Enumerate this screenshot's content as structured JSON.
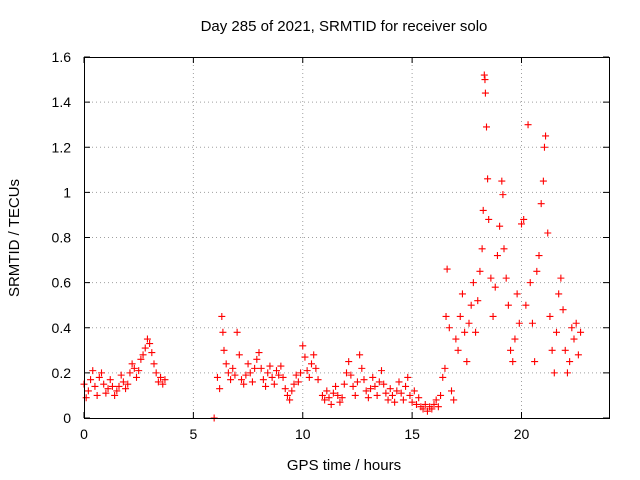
{
  "chart_data": {
    "type": "scatter",
    "title": "Day 285 of 2021, SRMTID for receiver solo",
    "xlabel": "GPS time / hours",
    "ylabel": "SRMTID / TECUs",
    "xlim": [
      0,
      24
    ],
    "ylim": [
      0,
      1.6
    ],
    "xticks": [
      "0",
      "5",
      "10",
      "15",
      "20"
    ],
    "xtick_values": [
      0,
      5,
      10,
      15,
      20
    ],
    "yticks": [
      "0",
      "0.2",
      "0.4",
      "0.6",
      "0.8",
      "1",
      "1.2",
      "1.4",
      "1.6"
    ],
    "ytick_values": [
      0,
      0.2,
      0.4,
      0.6,
      0.8,
      1.0,
      1.2,
      1.4,
      1.6
    ],
    "grid": true,
    "marker": "+",
    "color": "#ff0000",
    "series": [
      {
        "name": "SRMTID",
        "points": [
          [
            0.0,
            0.15
          ],
          [
            0.1,
            0.09
          ],
          [
            0.2,
            0.12
          ],
          [
            0.3,
            0.17
          ],
          [
            0.4,
            0.21
          ],
          [
            0.5,
            0.14
          ],
          [
            0.6,
            0.1
          ],
          [
            0.7,
            0.18
          ],
          [
            0.8,
            0.2
          ],
          [
            0.9,
            0.15
          ],
          [
            1.0,
            0.11
          ],
          [
            1.1,
            0.13
          ],
          [
            1.2,
            0.17
          ],
          [
            1.3,
            0.14
          ],
          [
            1.4,
            0.1
          ],
          [
            1.5,
            0.12
          ],
          [
            1.6,
            0.14
          ],
          [
            1.7,
            0.19
          ],
          [
            1.8,
            0.16
          ],
          [
            1.9,
            0.13
          ],
          [
            2.0,
            0.15
          ],
          [
            2.1,
            0.2
          ],
          [
            2.2,
            0.24
          ],
          [
            2.3,
            0.22
          ],
          [
            2.4,
            0.18
          ],
          [
            2.5,
            0.21
          ],
          [
            2.6,
            0.26
          ],
          [
            2.7,
            0.28
          ],
          [
            2.8,
            0.31
          ],
          [
            2.9,
            0.35
          ],
          [
            3.0,
            0.33
          ],
          [
            3.1,
            0.29
          ],
          [
            3.2,
            0.24
          ],
          [
            3.3,
            0.2
          ],
          [
            3.4,
            0.16
          ],
          [
            3.5,
            0.18
          ],
          [
            3.6,
            0.15
          ],
          [
            3.7,
            0.17
          ],
          [
            5.95,
            0.0
          ],
          [
            6.1,
            0.18
          ],
          [
            6.2,
            0.13
          ],
          [
            6.3,
            0.45
          ],
          [
            6.35,
            0.38
          ],
          [
            6.4,
            0.3
          ],
          [
            6.5,
            0.24
          ],
          [
            6.6,
            0.2
          ],
          [
            6.7,
            0.17
          ],
          [
            6.8,
            0.22
          ],
          [
            6.9,
            0.19
          ],
          [
            7.0,
            0.38
          ],
          [
            7.1,
            0.28
          ],
          [
            7.2,
            0.17
          ],
          [
            7.3,
            0.15
          ],
          [
            7.4,
            0.19
          ],
          [
            7.5,
            0.24
          ],
          [
            7.6,
            0.2
          ],
          [
            7.7,
            0.16
          ],
          [
            7.8,
            0.22
          ],
          [
            7.9,
            0.26
          ],
          [
            8.0,
            0.29
          ],
          [
            8.1,
            0.22
          ],
          [
            8.2,
            0.17
          ],
          [
            8.3,
            0.14
          ],
          [
            8.4,
            0.2
          ],
          [
            8.5,
            0.23
          ],
          [
            8.6,
            0.18
          ],
          [
            8.7,
            0.15
          ],
          [
            8.8,
            0.21
          ],
          [
            8.9,
            0.19
          ],
          [
            9.0,
            0.23
          ],
          [
            9.1,
            0.18
          ],
          [
            9.2,
            0.13
          ],
          [
            9.3,
            0.1
          ],
          [
            9.4,
            0.08
          ],
          [
            9.5,
            0.12
          ],
          [
            9.6,
            0.15
          ],
          [
            9.7,
            0.19
          ],
          [
            9.8,
            0.16
          ],
          [
            9.9,
            0.2
          ],
          [
            10.0,
            0.32
          ],
          [
            10.1,
            0.27
          ],
          [
            10.2,
            0.21
          ],
          [
            10.3,
            0.18
          ],
          [
            10.4,
            0.24
          ],
          [
            10.5,
            0.28
          ],
          [
            10.6,
            0.22
          ],
          [
            10.7,
            0.17
          ],
          [
            10.9,
            0.1
          ],
          [
            11.0,
            0.08
          ],
          [
            11.1,
            0.12
          ],
          [
            11.2,
            0.09
          ],
          [
            11.3,
            0.06
          ],
          [
            11.4,
            0.11
          ],
          [
            11.5,
            0.14
          ],
          [
            11.6,
            0.1
          ],
          [
            11.7,
            0.07
          ],
          [
            11.8,
            0.09
          ],
          [
            11.9,
            0.15
          ],
          [
            12.0,
            0.2
          ],
          [
            12.1,
            0.25
          ],
          [
            12.2,
            0.19
          ],
          [
            12.3,
            0.14
          ],
          [
            12.4,
            0.1
          ],
          [
            12.5,
            0.16
          ],
          [
            12.6,
            0.28
          ],
          [
            12.7,
            0.22
          ],
          [
            12.8,
            0.17
          ],
          [
            12.9,
            0.12
          ],
          [
            13.0,
            0.09
          ],
          [
            13.1,
            0.13
          ],
          [
            13.2,
            0.18
          ],
          [
            13.3,
            0.14
          ],
          [
            13.4,
            0.1
          ],
          [
            13.5,
            0.16
          ],
          [
            13.6,
            0.21
          ],
          [
            13.7,
            0.15
          ],
          [
            13.8,
            0.11
          ],
          [
            13.9,
            0.08
          ],
          [
            14.0,
            0.13
          ],
          [
            14.1,
            0.1
          ],
          [
            14.2,
            0.07
          ],
          [
            14.3,
            0.12
          ],
          [
            14.4,
            0.16
          ],
          [
            14.5,
            0.11
          ],
          [
            14.6,
            0.08
          ],
          [
            14.7,
            0.14
          ],
          [
            14.8,
            0.18
          ],
          [
            14.9,
            0.1
          ],
          [
            15.0,
            0.07
          ],
          [
            15.1,
            0.12
          ],
          [
            15.2,
            0.06
          ],
          [
            15.3,
            0.09
          ],
          [
            15.4,
            0.05
          ],
          [
            15.5,
            0.04
          ],
          [
            15.6,
            0.06
          ],
          [
            15.7,
            0.03
          ],
          [
            15.8,
            0.05
          ],
          [
            15.9,
            0.04
          ],
          [
            16.0,
            0.06
          ],
          [
            16.1,
            0.08
          ],
          [
            16.2,
            0.05
          ],
          [
            16.3,
            0.1
          ],
          [
            16.4,
            0.18
          ],
          [
            16.5,
            0.22
          ],
          [
            16.55,
            0.45
          ],
          [
            16.6,
            0.66
          ],
          [
            16.7,
            0.4
          ],
          [
            16.8,
            0.12
          ],
          [
            16.9,
            0.08
          ],
          [
            17.0,
            0.35
          ],
          [
            17.1,
            0.3
          ],
          [
            17.2,
            0.45
          ],
          [
            17.3,
            0.55
          ],
          [
            17.4,
            0.38
          ],
          [
            17.5,
            0.25
          ],
          [
            17.6,
            0.42
          ],
          [
            17.7,
            0.5
          ],
          [
            17.8,
            0.6
          ],
          [
            17.9,
            0.38
          ],
          [
            18.0,
            0.52
          ],
          [
            18.1,
            0.65
          ],
          [
            18.2,
            0.75
          ],
          [
            18.25,
            0.92
          ],
          [
            18.3,
            1.52
          ],
          [
            18.33,
            1.5
          ],
          [
            18.35,
            1.44
          ],
          [
            18.4,
            1.29
          ],
          [
            18.45,
            1.06
          ],
          [
            18.5,
            0.88
          ],
          [
            18.6,
            0.62
          ],
          [
            18.7,
            0.45
          ],
          [
            18.8,
            0.58
          ],
          [
            18.9,
            0.72
          ],
          [
            19.0,
            0.85
          ],
          [
            19.1,
            1.05
          ],
          [
            19.15,
            0.99
          ],
          [
            19.2,
            0.75
          ],
          [
            19.3,
            0.62
          ],
          [
            19.4,
            0.5
          ],
          [
            19.5,
            0.3
          ],
          [
            19.6,
            0.25
          ],
          [
            19.7,
            0.35
          ],
          [
            19.8,
            0.55
          ],
          [
            19.9,
            0.42
          ],
          [
            20.0,
            0.86
          ],
          [
            20.1,
            0.88
          ],
          [
            20.2,
            0.5
          ],
          [
            20.3,
            1.3
          ],
          [
            20.4,
            0.6
          ],
          [
            20.5,
            0.42
          ],
          [
            20.6,
            0.25
          ],
          [
            20.7,
            0.65
          ],
          [
            20.8,
            0.72
          ],
          [
            20.9,
            0.95
          ],
          [
            21.0,
            1.05
          ],
          [
            21.05,
            1.2
          ],
          [
            21.1,
            1.25
          ],
          [
            21.2,
            0.82
          ],
          [
            21.3,
            0.45
          ],
          [
            21.4,
            0.3
          ],
          [
            21.5,
            0.2
          ],
          [
            21.6,
            0.38
          ],
          [
            21.7,
            0.55
          ],
          [
            21.8,
            0.62
          ],
          [
            21.9,
            0.48
          ],
          [
            22.0,
            0.3
          ],
          [
            22.1,
            0.2
          ],
          [
            22.2,
            0.25
          ],
          [
            22.3,
            0.4
          ],
          [
            22.4,
            0.35
          ],
          [
            22.5,
            0.42
          ],
          [
            22.6,
            0.28
          ],
          [
            22.7,
            0.38
          ]
        ]
      }
    ]
  }
}
